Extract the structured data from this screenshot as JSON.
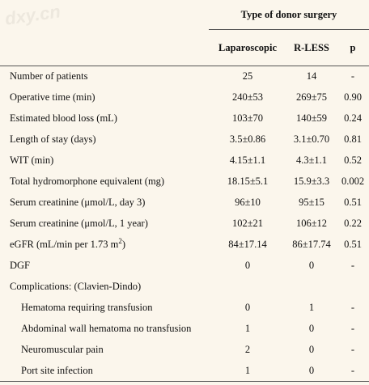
{
  "watermark": "dxy.cn",
  "header": {
    "group_title": "Type of donor surgery",
    "col_laparoscopic": "Laparoscopic",
    "col_rless": "R-LESS",
    "col_p": "p"
  },
  "rows": [
    {
      "label": "Number of patients",
      "lap": "25",
      "rless": "14",
      "p": "-"
    },
    {
      "label": "Operative time (min)",
      "lap": "240±53",
      "rless": "269±75",
      "p": "0.90"
    },
    {
      "label": "Estimated blood loss (mL)",
      "lap": "103±70",
      "rless": "140±59",
      "p": "0.24"
    },
    {
      "label": "Length of stay (days)",
      "lap": "3.5±0.86",
      "rless": "3.1±0.70",
      "p": "0.81"
    },
    {
      "label": "WIT (min)",
      "lap": "4.15±1.1",
      "rless": "4.3±1.1",
      "p": "0.52"
    },
    {
      "label": "Total hydromorphone equivalent (mg)",
      "lap": "18.15±5.1",
      "rless": "15.9±3.3",
      "p": "0.002"
    },
    {
      "label": "Serum creatinine (μmol/L, day 3)",
      "lap": "96±10",
      "rless": "95±15",
      "p": "0.51"
    },
    {
      "label": "Serum creatinine (μmol/L, 1 year)",
      "lap": "102±21",
      "rless": "106±12",
      "p": "0.22"
    },
    {
      "label": "eGFR (mL/min per 1.73 m",
      "label_sup": "2",
      "label_tail": ")",
      "lap": "84±17.14",
      "rless": "86±17.74",
      "p": "0.51"
    },
    {
      "label": "DGF",
      "lap": "0",
      "rless": "0",
      "p": "-"
    },
    {
      "label": "Complications: (Clavien-Dindo)",
      "lap": "",
      "rless": "",
      "p": ""
    },
    {
      "label": "Hematoma requiring transfusion",
      "lap": "0",
      "rless": "1",
      "p": "-"
    },
    {
      "label": "Abdominal wall hematoma no transfusion",
      "lap": "1",
      "rless": "0",
      "p": "-"
    },
    {
      "label": "Neuromuscular pain",
      "lap": "2",
      "rless": "0",
      "p": "-"
    },
    {
      "label": "Port site infection",
      "lap": "1",
      "rless": "0",
      "p": "-"
    }
  ]
}
